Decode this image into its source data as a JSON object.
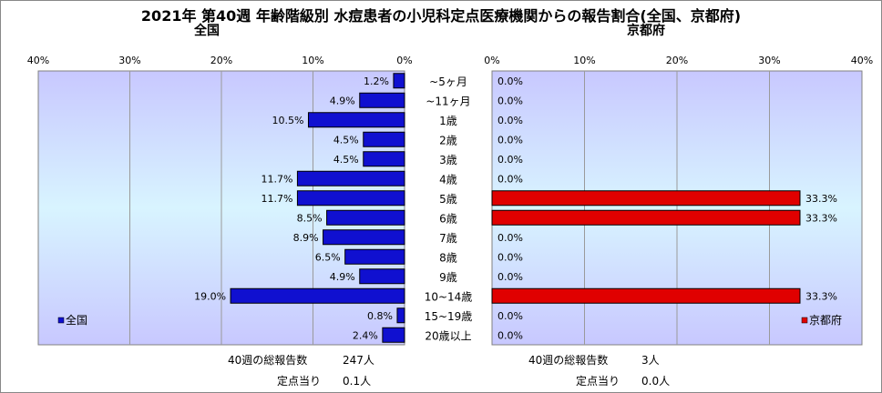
{
  "title": "2021年 第40週 年齢階級別 水痘患者の小児科定点医療機関からの報告割合(全国、京都府)",
  "chart_data": [
    {
      "type": "bar",
      "orientation": "horizontal",
      "direction": "right-to-left",
      "title": "全国",
      "categories": [
        "~5ヶ月",
        "~11ヶ月",
        "1歳",
        "2歳",
        "3歳",
        "4歳",
        "5歳",
        "6歳",
        "7歳",
        "8歳",
        "9歳",
        "10~14歳",
        "15~19歳",
        "20歳以上"
      ],
      "series": [
        {
          "name": "全国",
          "color": "#1010d0",
          "values": [
            1.2,
            4.9,
            10.5,
            4.5,
            4.5,
            11.7,
            11.7,
            8.5,
            8.9,
            6.5,
            4.9,
            19.0,
            0.8,
            2.4
          ]
        }
      ],
      "value_labels": [
        "1.2%",
        "4.9%",
        "10.5%",
        "4.5%",
        "4.5%",
        "11.7%",
        "11.7%",
        "8.5%",
        "8.9%",
        "6.5%",
        "4.9%",
        "19.0%",
        "0.8%",
        "2.4%"
      ],
      "xlim": [
        0,
        40
      ],
      "xticks": [
        "40%",
        "30%",
        "20%",
        "10%",
        "0%"
      ],
      "xtick_values": [
        40,
        30,
        20,
        10,
        0
      ],
      "grid": true,
      "legend": "bottom-left"
    },
    {
      "type": "bar",
      "orientation": "horizontal",
      "direction": "left-to-right",
      "title": "京都府",
      "categories": [
        "~5ヶ月",
        "~11ヶ月",
        "1歳",
        "2歳",
        "3歳",
        "4歳",
        "5歳",
        "6歳",
        "7歳",
        "8歳",
        "9歳",
        "10~14歳",
        "15~19歳",
        "20歳以上"
      ],
      "series": [
        {
          "name": "京都府",
          "color": "#e00000",
          "values": [
            0.0,
            0.0,
            0.0,
            0.0,
            0.0,
            0.0,
            33.3,
            33.3,
            0.0,
            0.0,
            0.0,
            33.3,
            0.0,
            0.0
          ]
        }
      ],
      "value_labels": [
        "0.0%",
        "0.0%",
        "0.0%",
        "0.0%",
        "0.0%",
        "0.0%",
        "33.3%",
        "33.3%",
        "0.0%",
        "0.0%",
        "0.0%",
        "33.3%",
        "0.0%",
        "0.0%"
      ],
      "xlim": [
        0,
        40
      ],
      "xticks": [
        "0%",
        "10%",
        "20%",
        "30%",
        "40%"
      ],
      "xtick_values": [
        0,
        10,
        20,
        30,
        40
      ],
      "grid": true,
      "legend": "bottom-right"
    }
  ],
  "category_labels": [
    "~5ヶ月",
    "~11ヶ月",
    "1歳",
    "2歳",
    "3歳",
    "4歳",
    "5歳",
    "6歳",
    "7歳",
    "8歳",
    "9歳",
    "10~14歳",
    "15~19歳",
    "20歳以上"
  ],
  "footer": {
    "national": {
      "total_label": "40週の総報告数",
      "total_value": "247人",
      "per_label": "定点当り",
      "per_value": "0.1人"
    },
    "kyoto": {
      "total_label": "40週の総報告数",
      "total_value": "3人",
      "per_label": "定点当り",
      "per_value": "0.0人"
    }
  }
}
